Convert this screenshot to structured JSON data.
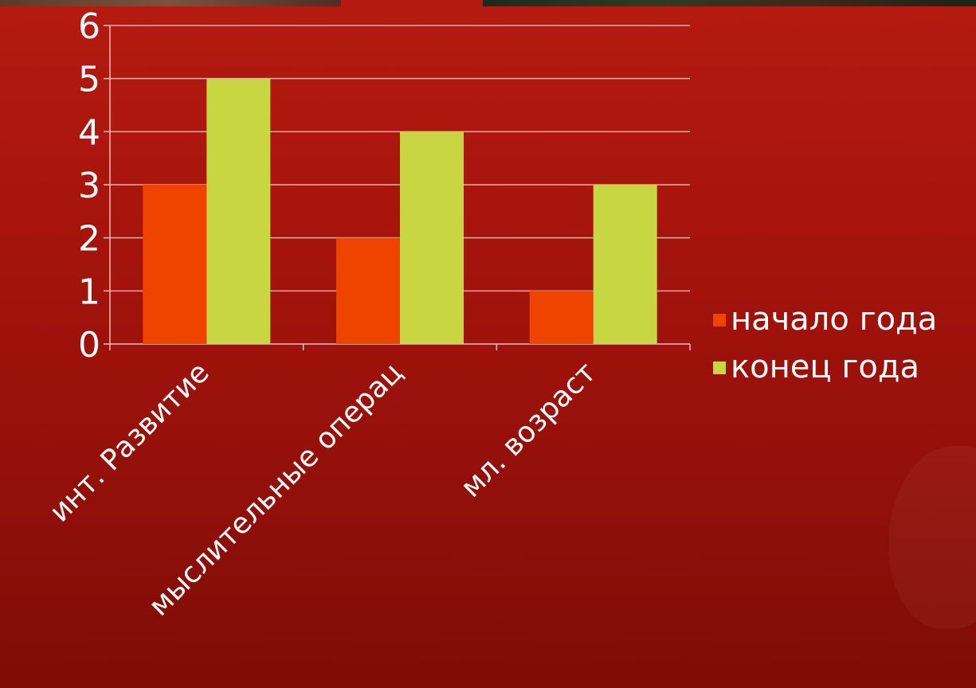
{
  "chart_data": {
    "type": "bar",
    "categories": [
      "инт. Развитие",
      "мыслительные операц",
      "мл. возраст"
    ],
    "series": [
      {
        "name": "начало года",
        "values": [
          3,
          2,
          1
        ],
        "color": "#ee4400"
      },
      {
        "name": "конец года",
        "values": [
          5,
          4,
          3
        ],
        "color": "#c8d642"
      }
    ],
    "ylim": [
      0,
      6
    ],
    "yticks": [
      0,
      1,
      2,
      3,
      4,
      5,
      6
    ],
    "grid": true,
    "legend": "right",
    "title": "",
    "xlabel": "",
    "ylabel": ""
  }
}
